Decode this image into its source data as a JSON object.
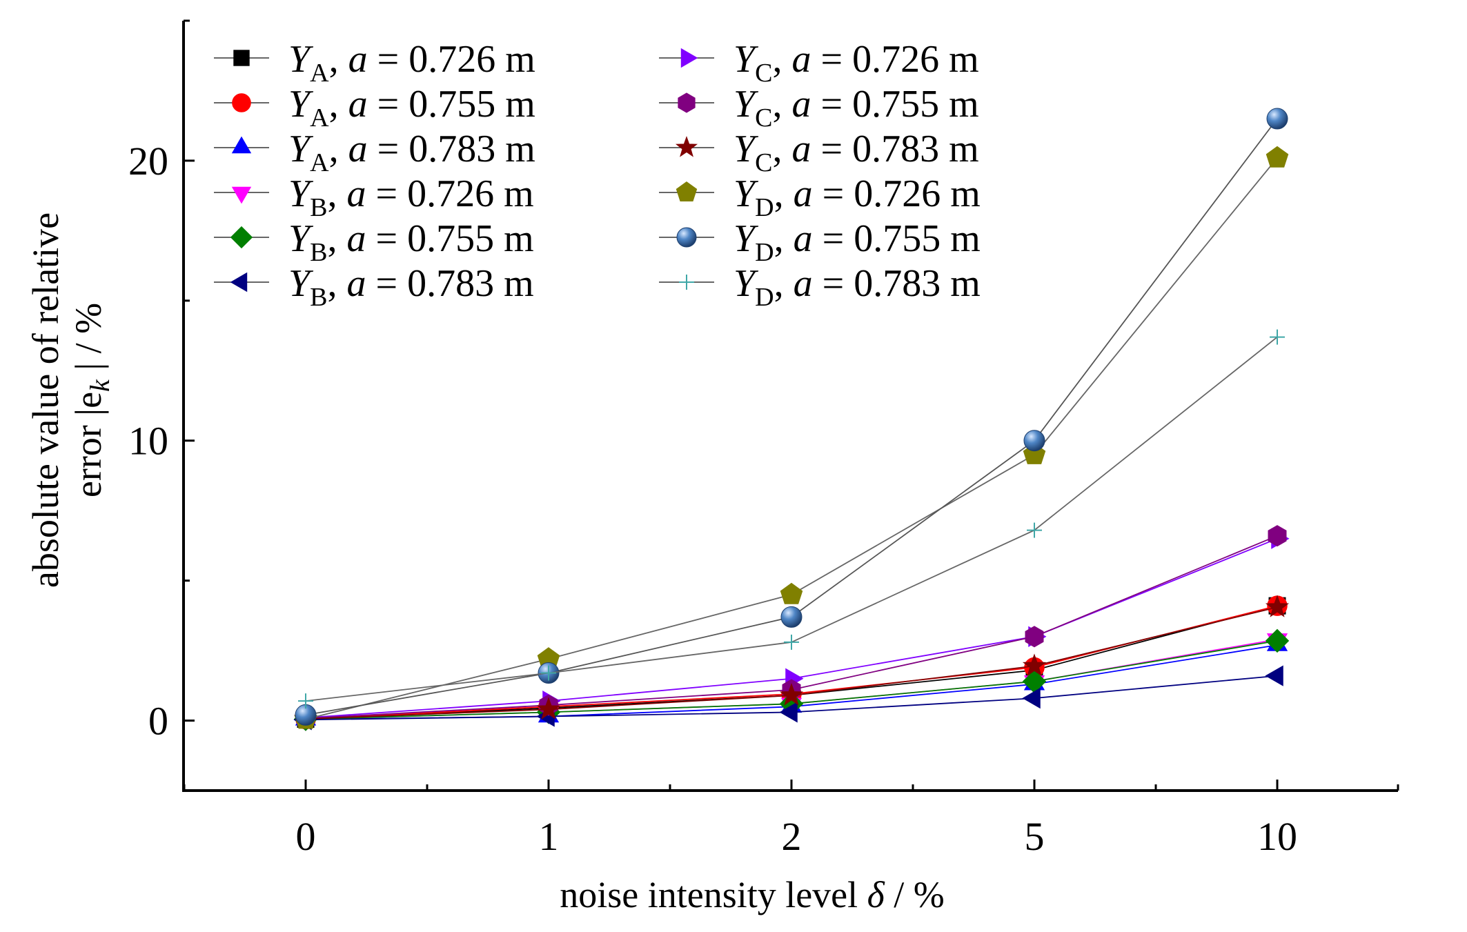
{
  "chart_data": {
    "type": "line",
    "title": "",
    "xlabel": "noise intensity level δ / %",
    "ylabel": "absolute value of relative error |e_k| / %",
    "ylabel_lines": [
      "absolute value of relative",
      "error |e",
      "k",
      " | / %"
    ],
    "xlabel_parts": [
      "noise intensity level ",
      "δ",
      " / %"
    ],
    "x_categories": [
      "0",
      "1",
      "2",
      "5",
      "10"
    ],
    "y_ticks": [
      "0",
      "10",
      "20"
    ],
    "ylim": [
      -2.5,
      25
    ],
    "grid": false,
    "legend_position": "top-left",
    "series": [
      {
        "name": "Y_A, a = 0.726 m",
        "sym": "Y",
        "sub": "A",
        "a": "a",
        "val": " = 0.726 m",
        "marker": "square",
        "color": "#000000",
        "values": [
          0.05,
          0.45,
          0.9,
          1.8,
          4.1
        ]
      },
      {
        "name": "Y_A, a = 0.755 m",
        "sym": "Y",
        "sub": "A",
        "a": "a",
        "val": " = 0.755 m",
        "marker": "circle",
        "color": "#ff0000",
        "values": [
          0.05,
          0.5,
          0.95,
          1.9,
          4.1
        ]
      },
      {
        "name": "Y_A, a = 0.783 m",
        "sym": "Y",
        "sub": "A",
        "a": "a",
        "val": " = 0.783 m",
        "marker": "triangle-up",
        "color": "#0000ff",
        "values": [
          0.04,
          0.15,
          0.5,
          1.3,
          2.7
        ]
      },
      {
        "name": "Y_B, a = 0.726 m",
        "sym": "Y",
        "sub": "B",
        "a": "a",
        "val": " = 0.726 m",
        "marker": "triangle-down",
        "color": "#ff00ff",
        "values": [
          0.05,
          0.3,
          0.6,
          1.4,
          2.9
        ]
      },
      {
        "name": "Y_B, a = 0.755 m",
        "sym": "Y",
        "sub": "B",
        "a": "a",
        "val": " = 0.755 m",
        "marker": "diamond",
        "color": "#007f00",
        "values": [
          0.05,
          0.3,
          0.6,
          1.4,
          2.85
        ]
      },
      {
        "name": "Y_B, a = 0.783 m",
        "sym": "Y",
        "sub": "B",
        "a": "a",
        "val": " = 0.783 m",
        "marker": "triangle-left",
        "color": "#000080",
        "values": [
          0.03,
          0.15,
          0.3,
          0.8,
          1.6
        ]
      },
      {
        "name": "Y_C, a = 0.726 m",
        "sym": "Y",
        "sub": "C",
        "a": "a",
        "val": " = 0.726 m",
        "marker": "triangle-right",
        "color": "#8000ff",
        "values": [
          0.1,
          0.7,
          1.5,
          3.0,
          6.5
        ]
      },
      {
        "name": "Y_C, a = 0.755 m",
        "sym": "Y",
        "sub": "C",
        "a": "a",
        "val": " = 0.755 m",
        "marker": "hexagon",
        "color": "#800080",
        "values": [
          0.08,
          0.55,
          1.1,
          3.0,
          6.6
        ]
      },
      {
        "name": "Y_C, a = 0.783 m",
        "sym": "Y",
        "sub": "C",
        "a": "a",
        "val": " = 0.783 m",
        "marker": "star",
        "color": "#800000",
        "values": [
          0.06,
          0.4,
          0.9,
          1.95,
          4.05
        ]
      },
      {
        "name": "Y_D, a = 0.726 m",
        "sym": "Y",
        "sub": "D",
        "a": "a",
        "val": " = 0.726 m",
        "marker": "pentagon",
        "color": "#808000",
        "values": [
          0.05,
          2.2,
          4.5,
          9.5,
          20.1
        ]
      },
      {
        "name": "Y_D, a = 0.755 m",
        "sym": "Y",
        "sub": "D",
        "a": "a",
        "val": " = 0.755 m",
        "marker": "sphere",
        "color": "#3f74b0",
        "values": [
          0.2,
          1.7,
          3.7,
          10.0,
          21.5
        ]
      },
      {
        "name": "Y_D, a = 0.783 m",
        "sym": "Y",
        "sub": "D",
        "a": "a",
        "val": " = 0.783 m",
        "marker": "plus",
        "color": "#3fa7a7",
        "values": [
          0.7,
          1.7,
          2.8,
          6.8,
          13.7
        ]
      }
    ]
  }
}
